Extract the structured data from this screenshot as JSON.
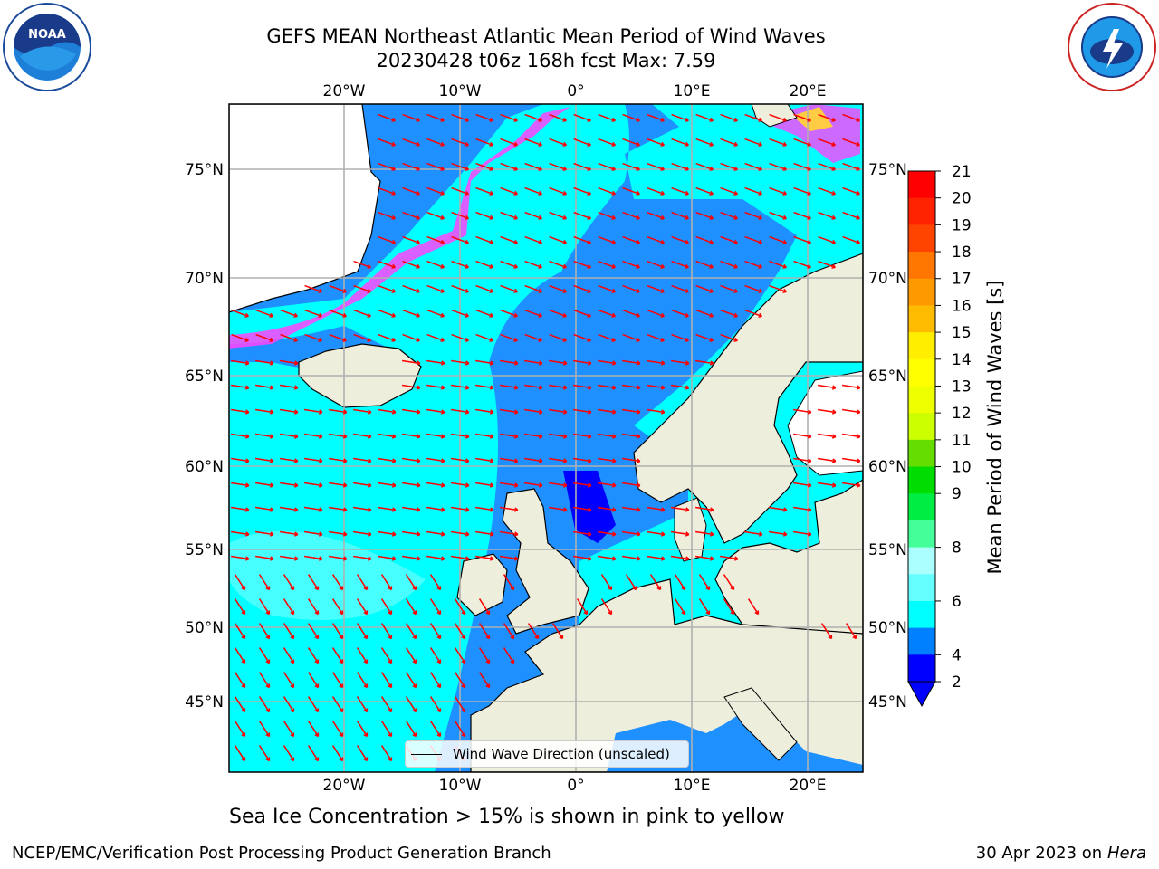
{
  "title": {
    "line1": "GEFS MEAN Northeast Atlantic Mean Period of Wind Waves",
    "line2": "20230428 t06z 168h fcst   Max: 7.59"
  },
  "logos": {
    "left": "noaa-logo",
    "right": "nws-logo"
  },
  "map": {
    "top_lon_labels": [
      "20°W",
      "10°W",
      "0°",
      "10°E",
      "20°E"
    ],
    "bottom_lon_labels": [
      "20°W",
      "10°W",
      "0°",
      "10°E",
      "20°E"
    ],
    "left_lat_labels": [
      "75°N",
      "70°N",
      "65°N",
      "60°N",
      "55°N",
      "50°N",
      "45°N"
    ],
    "right_lat_labels": [
      "75°N",
      "70°N",
      "65°N",
      "60°N",
      "55°N",
      "50°N",
      "45°N"
    ],
    "legend_label": "Wind Wave Direction (unscaled)",
    "colors": {
      "ocean_light": "#00ffff",
      "ocean_mid": "#1e90ff",
      "ocean_dark": "#0000ff",
      "land": "#eeeedd",
      "arrow": "#ff0000"
    }
  },
  "colorbar": {
    "label": "Mean Period of Wind Waves [s]",
    "ticks": [
      "21",
      "20",
      "19",
      "18",
      "17",
      "16",
      "15",
      "14",
      "13",
      "12",
      "11",
      "10",
      "9",
      "8",
      "6",
      "4",
      "2"
    ],
    "colors": [
      "#ff0000",
      "#ff2200",
      "#ff4400",
      "#ff7700",
      "#ff9900",
      "#ffbb00",
      "#ffee00",
      "#ffff00",
      "#eeff00",
      "#ccff00",
      "#66dd00",
      "#00dd00",
      "#00ee44",
      "#44ff99",
      "#aaffff",
      "#66ffff",
      "#00ffff",
      "#0080ff",
      "#0000ff"
    ]
  },
  "caption": "Sea Ice Concentration > 15% is shown in pink to yellow",
  "footer": {
    "left": "NCEP/EMC/Verification Post Processing Product Generation Branch",
    "right_date": "30 Apr 2023 on ",
    "right_host": "Hera"
  }
}
